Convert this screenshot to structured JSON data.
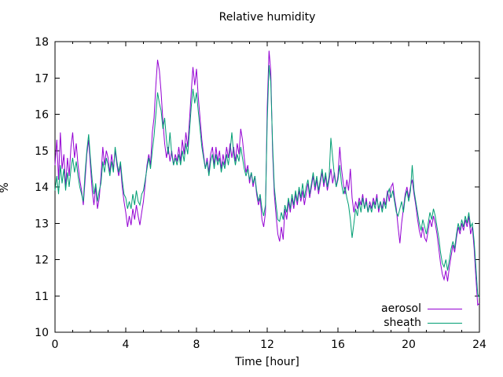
{
  "chart_data": {
    "type": "line",
    "title": "Relative humidity",
    "xlabel": "Time [hour]",
    "ylabel": "%",
    "x_range": [
      0,
      24
    ],
    "y_range": [
      10,
      18
    ],
    "x_major_ticks": [
      0,
      4,
      8,
      12,
      16,
      20,
      24
    ],
    "x_minor_step": 1,
    "y_major_ticks": [
      10,
      11,
      12,
      13,
      14,
      15,
      16,
      17,
      18
    ],
    "grid": false,
    "legend_position": "inside-bottom-right",
    "background_color": "#ffffff",
    "foreground_color": "#000000",
    "x_start": 0,
    "x_step": 0.1,
    "series": [
      {
        "name": "aerosol",
        "color": "#9400d3",
        "values": [
          14.6,
          15.3,
          14.2,
          15.5,
          14.5,
          14.9,
          14.0,
          14.8,
          14.3,
          15.1,
          15.5,
          14.8,
          15.2,
          14.6,
          14.2,
          13.9,
          13.5,
          14.2,
          14.9,
          15.3,
          14.6,
          13.9,
          13.5,
          14.0,
          13.4,
          13.7,
          14.3,
          15.1,
          14.6,
          15.0,
          14.8,
          14.4,
          14.9,
          14.5,
          15.0,
          14.6,
          14.3,
          14.6,
          14.0,
          13.6,
          13.3,
          12.9,
          13.2,
          12.95,
          13.4,
          13.1,
          13.5,
          13.2,
          12.95,
          13.3,
          13.6,
          14.1,
          14.6,
          14.9,
          14.6,
          15.5,
          15.9,
          16.8,
          17.5,
          17.2,
          16.6,
          15.8,
          15.2,
          14.8,
          15.1,
          14.7,
          15.0,
          14.6,
          14.9,
          14.7,
          15.1,
          14.7,
          15.3,
          14.9,
          15.5,
          15.1,
          15.8,
          16.6,
          17.3,
          16.8,
          17.25,
          16.5,
          15.9,
          15.3,
          14.9,
          14.5,
          14.8,
          14.4,
          14.9,
          15.1,
          14.6,
          15.1,
          14.7,
          15.0,
          14.5,
          14.9,
          14.6,
          15.1,
          14.8,
          15.2,
          14.8,
          15.1,
          14.7,
          15.2,
          14.9,
          15.6,
          15.3,
          14.8,
          14.4,
          14.6,
          14.1,
          14.4,
          14.0,
          14.3,
          13.8,
          13.5,
          13.7,
          13.1,
          12.9,
          13.3,
          16.2,
          17.75,
          17.2,
          15.0,
          13.8,
          13.2,
          12.7,
          12.5,
          12.9,
          12.55,
          13.4,
          13.1,
          13.6,
          13.3,
          13.7,
          13.4,
          13.8,
          13.5,
          13.9,
          13.6,
          13.9,
          13.5,
          13.8,
          14.1,
          13.7,
          14.0,
          14.3,
          13.9,
          14.2,
          13.8,
          14.1,
          14.4,
          14.0,
          14.3,
          13.9,
          14.2,
          14.5,
          14.1,
          14.4,
          14.0,
          14.3,
          15.1,
          14.5,
          14.1,
          13.8,
          14.2,
          13.9,
          14.5,
          13.7,
          13.3,
          13.6,
          13.4,
          13.7,
          13.5,
          13.8,
          13.4,
          13.7,
          13.3,
          13.6,
          13.4,
          13.7,
          13.5,
          13.8,
          13.3,
          13.6,
          13.4,
          13.7,
          13.5,
          13.9,
          13.6,
          14.0,
          14.1,
          13.7,
          13.4,
          12.9,
          12.45,
          13.0,
          13.4,
          13.8,
          14.0,
          13.7,
          14.0,
          14.2,
          13.8,
          13.5,
          13.1,
          12.8,
          12.6,
          12.9,
          12.6,
          12.5,
          12.8,
          13.1,
          12.9,
          13.2,
          13.0,
          12.7,
          12.3,
          11.9,
          11.6,
          11.45,
          11.7,
          11.4,
          11.8,
          12.1,
          12.4,
          12.2,
          12.6,
          12.9,
          12.7,
          13.0,
          12.8,
          13.1,
          12.9,
          13.2,
          12.7,
          12.9,
          12.3,
          11.5,
          10.75,
          10.8
        ]
      },
      {
        "name": "sheath",
        "color": "#009e73",
        "values": [
          13.9,
          14.3,
          13.8,
          14.6,
          14.1,
          14.5,
          13.9,
          14.4,
          14.0,
          14.5,
          14.8,
          14.4,
          14.7,
          14.3,
          14.0,
          13.8,
          13.6,
          14.4,
          15.0,
          15.45,
          14.8,
          14.2,
          13.8,
          14.1,
          13.6,
          13.9,
          14.1,
          14.7,
          14.4,
          14.8,
          14.6,
          14.3,
          14.7,
          14.4,
          15.1,
          14.7,
          14.4,
          14.7,
          14.2,
          13.8,
          13.7,
          13.4,
          13.6,
          13.4,
          13.8,
          13.5,
          13.9,
          13.6,
          13.5,
          13.8,
          13.9,
          14.2,
          14.5,
          14.8,
          14.5,
          15.0,
          15.4,
          16.0,
          16.6,
          16.3,
          16.1,
          15.6,
          15.9,
          15.3,
          14.9,
          15.5,
          14.9,
          14.6,
          14.8,
          14.6,
          14.9,
          14.6,
          15.0,
          14.7,
          15.2,
          14.9,
          15.5,
          16.2,
          16.7,
          16.3,
          16.6,
          16.1,
          15.6,
          15.1,
          14.8,
          14.5,
          14.7,
          14.3,
          14.7,
          14.9,
          14.5,
          14.9,
          14.6,
          14.8,
          14.4,
          14.7,
          14.5,
          14.9,
          14.6,
          15.0,
          15.5,
          14.9,
          14.6,
          14.9,
          14.7,
          15.1,
          14.8,
          14.5,
          14.3,
          14.5,
          14.2,
          14.4,
          14.1,
          14.3,
          13.9,
          13.6,
          13.8,
          13.4,
          13.2,
          13.5,
          15.8,
          17.35,
          16.9,
          15.2,
          14.0,
          13.5,
          13.1,
          13.05,
          13.3,
          13.1,
          13.5,
          13.3,
          13.7,
          13.4,
          13.8,
          13.5,
          13.9,
          13.6,
          14.0,
          13.7,
          14.1,
          13.7,
          14.0,
          14.2,
          13.8,
          14.1,
          14.4,
          14.0,
          14.3,
          13.9,
          14.2,
          14.5,
          14.1,
          14.4,
          14.0,
          14.3,
          15.35,
          14.8,
          14.3,
          14.0,
          14.2,
          14.6,
          14.1,
          13.8,
          14.0,
          13.7,
          13.5,
          13.1,
          12.6,
          13.0,
          13.4,
          13.2,
          13.6,
          13.3,
          13.7,
          13.4,
          13.6,
          13.3,
          13.5,
          13.3,
          13.6,
          13.4,
          13.7,
          13.4,
          13.6,
          13.3,
          13.6,
          13.4,
          13.8,
          13.95,
          13.7,
          13.9,
          13.6,
          13.3,
          13.2,
          13.4,
          13.6,
          13.3,
          13.7,
          13.9,
          13.6,
          13.9,
          14.6,
          13.9,
          13.6,
          13.3,
          13.0,
          12.8,
          13.1,
          12.9,
          12.7,
          13.0,
          13.3,
          13.1,
          13.4,
          13.2,
          12.9,
          12.6,
          12.2,
          11.9,
          11.8,
          12.0,
          11.7,
          12.0,
          12.3,
          12.5,
          12.3,
          12.7,
          13.0,
          12.8,
          13.1,
          12.9,
          13.2,
          13.0,
          13.3,
          12.9,
          13.0,
          12.5,
          11.8,
          11.05,
          10.95
        ]
      }
    ]
  }
}
